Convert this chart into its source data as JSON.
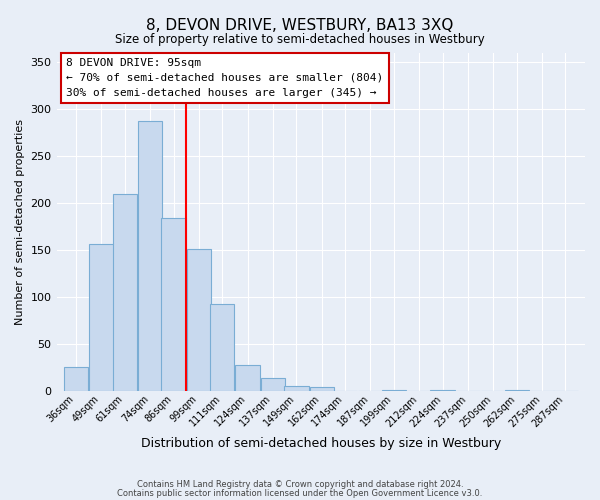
{
  "title": "8, DEVON DRIVE, WESTBURY, BA13 3XQ",
  "subtitle": "Size of property relative to semi-detached houses in Westbury",
  "xlabel": "Distribution of semi-detached houses by size in Westbury",
  "ylabel": "Number of semi-detached properties",
  "bin_labels": [
    "36sqm",
    "49sqm",
    "61sqm",
    "74sqm",
    "86sqm",
    "99sqm",
    "111sqm",
    "124sqm",
    "137sqm",
    "149sqm",
    "162sqm",
    "174sqm",
    "187sqm",
    "199sqm",
    "212sqm",
    "224sqm",
    "237sqm",
    "250sqm",
    "262sqm",
    "275sqm",
    "287sqm"
  ],
  "bar_heights": [
    25,
    156,
    209,
    287,
    184,
    151,
    92,
    28,
    14,
    5,
    4,
    0,
    0,
    1,
    0,
    1,
    0,
    0,
    1,
    0,
    0
  ],
  "bar_color": "#c8d9ee",
  "bar_edge_color": "#7aadd4",
  "vline_color": "red",
  "ylim": [
    0,
    360
  ],
  "yticks": [
    0,
    50,
    100,
    150,
    200,
    250,
    300,
    350
  ],
  "annotation_title": "8 DEVON DRIVE: 95sqm",
  "annotation_line1": "← 70% of semi-detached houses are smaller (804)",
  "annotation_line2": "30% of semi-detached houses are larger (345) →",
  "annotation_box_facecolor": "#ffffff",
  "annotation_box_edgecolor": "#cc0000",
  "footer1": "Contains HM Land Registry data © Crown copyright and database right 2024.",
  "footer2": "Contains public sector information licensed under the Open Government Licence v3.0.",
  "background_color": "#e8eef7",
  "plot_bg_color": "#e8eef7",
  "n_bins": 21,
  "vline_bin_index": 5
}
